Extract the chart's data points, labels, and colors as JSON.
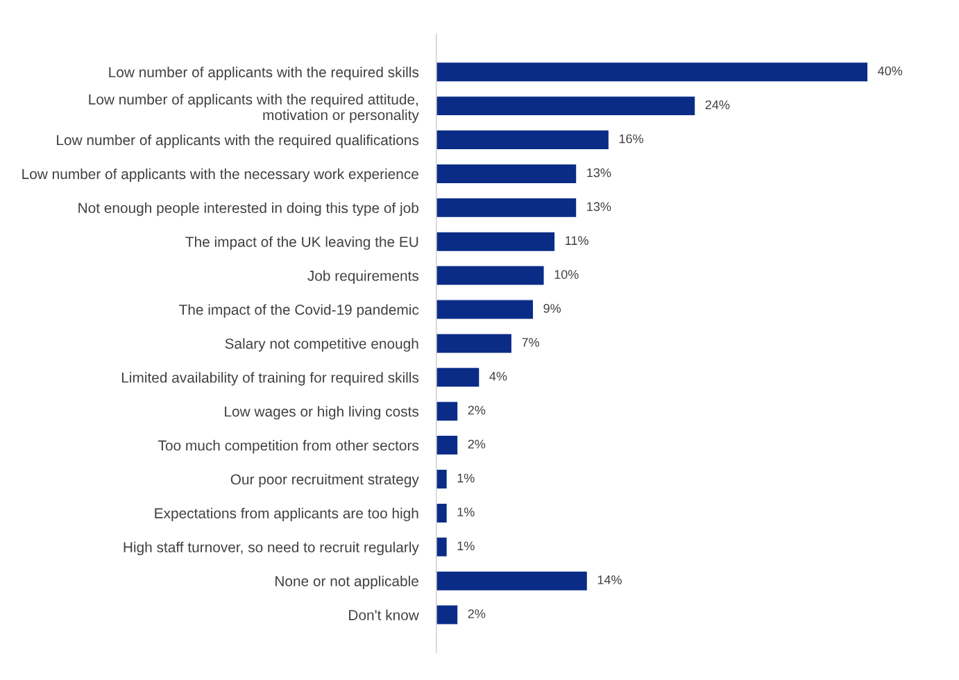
{
  "chart_data": {
    "type": "bar",
    "orientation": "horizontal",
    "color": "#0a2c87",
    "categories": [
      "Low number of applicants with the required skills",
      "Low number of applicants with the required attitude,\nmotivation or personality",
      "Low number of applicants with the required qualifications",
      "Low number of applicants with the necessary work experience",
      "Not enough people interested in doing this type of job",
      "The impact of the UK leaving the EU",
      "Job requirements",
      "The impact of the Covid-19 pandemic",
      "Salary not competitive enough",
      "Limited availability of training for required skills",
      "Low wages or high living costs",
      "Too much competition from other sectors",
      "Our poor recruitment strategy",
      "Expectations from applicants are too high",
      "High staff turnover, so need to recruit regularly",
      "None or not applicable",
      "Don't know"
    ],
    "values": [
      40,
      24,
      16,
      13,
      13,
      11,
      10,
      9,
      7,
      4,
      2,
      2,
      1,
      1,
      1,
      14,
      2
    ],
    "value_labels": [
      "40%",
      "24%",
      "16%",
      "13%",
      "13%",
      "11%",
      "10%",
      "9%",
      "7%",
      "4%",
      "2%",
      "2%",
      "1%",
      "1%",
      "1%",
      "14%",
      "2%"
    ],
    "grid": false,
    "legend": false
  }
}
